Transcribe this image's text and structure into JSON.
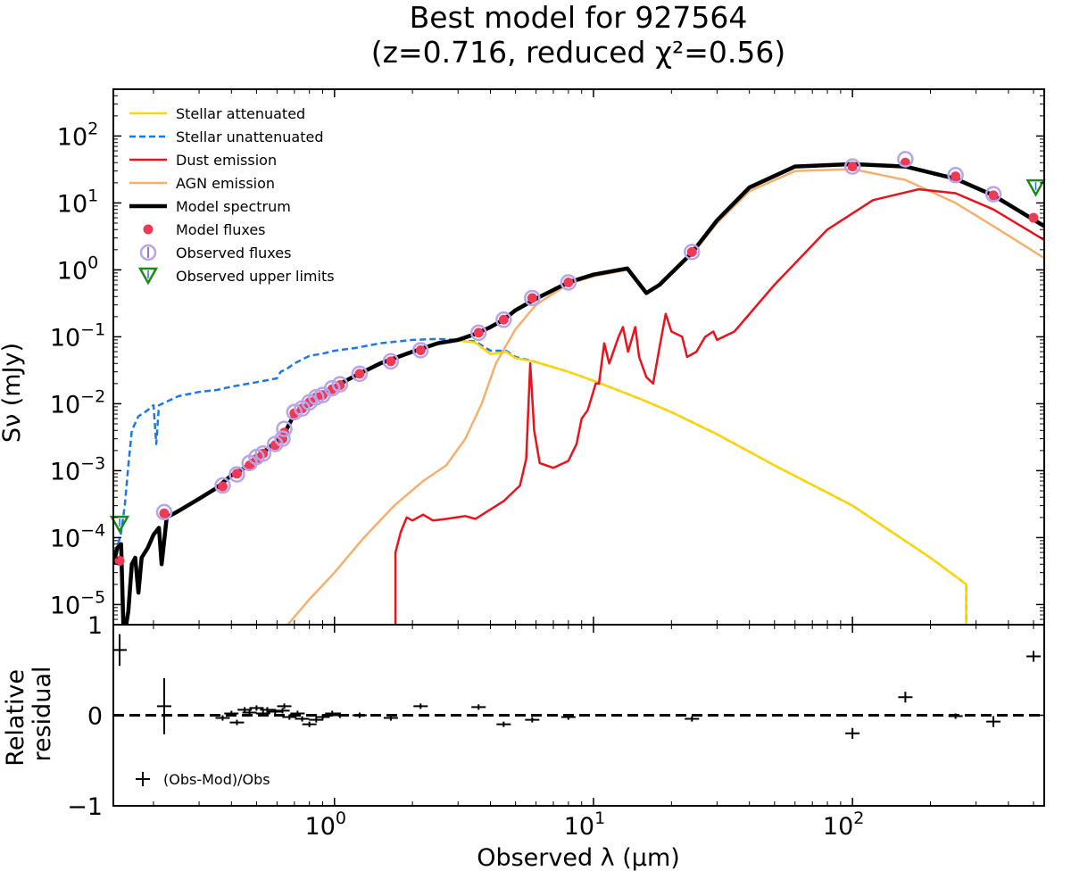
{
  "title_line1": "Best model for 927564",
  "title_line2": "(z=0.716, reduced χ²=0.56)",
  "chart_data": {
    "type": "line",
    "title": "Best model for 927564 (z=0.716, reduced χ²=0.56)",
    "xlabel": "Observed λ (μm)",
    "ylabel": "Sν (mJy)",
    "xscale": "log",
    "yscale": "log",
    "xlim": [
      0.14,
      550
    ],
    "ylim": [
      5e-06,
      500
    ],
    "x_ticks": [
      {
        "value": 1,
        "base": "10",
        "exp": "0"
      },
      {
        "value": 10,
        "base": "10",
        "exp": "1"
      },
      {
        "value": 100,
        "base": "10",
        "exp": "2"
      }
    ],
    "y_ticks": [
      {
        "value": 1e-05,
        "base": "10",
        "exp": "−5"
      },
      {
        "value": 0.0001,
        "base": "10",
        "exp": "−4"
      },
      {
        "value": 0.001,
        "base": "10",
        "exp": "−3"
      },
      {
        "value": 0.01,
        "base": "10",
        "exp": "−2"
      },
      {
        "value": 0.1,
        "base": "10",
        "exp": "−1"
      },
      {
        "value": 1,
        "base": "10",
        "exp": "0"
      },
      {
        "value": 10,
        "base": "10",
        "exp": "1"
      },
      {
        "value": 100,
        "base": "10",
        "exp": "2"
      }
    ],
    "legend": {
      "position": "upper-left",
      "entries": [
        {
          "label": "Stellar attenuated",
          "color": "#FFD700",
          "style": "solid"
        },
        {
          "label": "Stellar unattenuated",
          "color": "#1f77e6",
          "style": "dashed"
        },
        {
          "label": "Dust emission",
          "color": "#e8131c",
          "style": "solid"
        },
        {
          "label": "AGN emission",
          "color": "#f5b070",
          "style": "solid"
        },
        {
          "label": "Model spectrum",
          "color": "#000000",
          "style": "thick"
        },
        {
          "label": "Model fluxes",
          "color": "#ee3a55",
          "style": "dot"
        },
        {
          "label": "Observed fluxes",
          "color": "#b9a3ea",
          "style": "circle"
        },
        {
          "label": "Observed upper limits",
          "color": "#1a8a1a",
          "style": "triangle"
        }
      ]
    },
    "series": [
      {
        "name": "Stellar unattenuated",
        "color": "#1f77e6",
        "points": [
          [
            0.14,
            6e-05
          ],
          [
            0.145,
            7e-05
          ],
          [
            0.15,
            0.00012
          ],
          [
            0.155,
            0.0003
          ],
          [
            0.16,
            0.0012
          ],
          [
            0.165,
            0.004
          ],
          [
            0.175,
            0.0065
          ],
          [
            0.19,
            0.008
          ],
          [
            0.2,
            0.0095
          ],
          [
            0.205,
            0.0025
          ],
          [
            0.21,
            0.0095
          ],
          [
            0.25,
            0.013
          ],
          [
            0.3,
            0.015
          ],
          [
            0.35,
            0.016
          ],
          [
            0.4,
            0.018
          ],
          [
            0.5,
            0.021
          ],
          [
            0.6,
            0.024
          ],
          [
            0.62,
            0.03
          ],
          [
            0.66,
            0.034
          ],
          [
            0.7,
            0.04
          ],
          [
            0.8,
            0.052
          ],
          [
            0.9,
            0.056
          ],
          [
            1.0,
            0.062
          ],
          [
            1.2,
            0.068
          ],
          [
            1.5,
            0.08
          ],
          [
            2.0,
            0.09
          ],
          [
            2.5,
            0.093
          ],
          [
            3.0,
            0.09
          ],
          [
            3.5,
            0.085
          ],
          [
            4.0,
            0.062
          ],
          [
            4.6,
            0.062
          ],
          [
            5.0,
            0.05
          ],
          [
            6.0,
            0.042
          ],
          [
            8.0,
            0.03
          ],
          [
            10.0,
            0.022
          ],
          [
            15.0,
            0.012
          ],
          [
            20.0,
            0.0075
          ],
          [
            30.0,
            0.0035
          ],
          [
            50.0,
            0.0012
          ],
          [
            100.0,
            0.0003
          ],
          [
            200.0,
            5e-05
          ],
          [
            275.0,
            2e-05
          ],
          [
            275.0,
            5e-06
          ]
        ]
      },
      {
        "name": "Stellar attenuated",
        "color": "#FFD700",
        "points": [
          [
            3.0,
            0.088
          ],
          [
            3.5,
            0.082
          ],
          [
            4.0,
            0.055
          ],
          [
            4.6,
            0.06
          ],
          [
            5.0,
            0.048
          ],
          [
            6.0,
            0.042
          ],
          [
            8.0,
            0.03
          ],
          [
            10.0,
            0.022
          ],
          [
            15.0,
            0.012
          ],
          [
            20.0,
            0.0075
          ],
          [
            30.0,
            0.0035
          ],
          [
            50.0,
            0.0012
          ],
          [
            100.0,
            0.0003
          ],
          [
            200.0,
            5e-05
          ],
          [
            275.0,
            2e-05
          ],
          [
            275.0,
            5e-06
          ]
        ]
      },
      {
        "name": "AGN emission",
        "color": "#f5b070",
        "points": [
          [
            0.66,
            5e-06
          ],
          [
            0.8,
            1.2e-05
          ],
          [
            1.0,
            3e-05
          ],
          [
            1.3,
            0.0001
          ],
          [
            1.7,
            0.0003
          ],
          [
            2.2,
            0.0007
          ],
          [
            2.7,
            0.0012
          ],
          [
            3.2,
            0.003
          ],
          [
            3.7,
            0.01
          ],
          [
            4.2,
            0.04
          ],
          [
            5.0,
            0.13
          ],
          [
            6.0,
            0.3
          ],
          [
            8.0,
            0.62
          ],
          [
            10.0,
            0.8
          ],
          [
            13.5,
            1.0
          ],
          [
            16.0,
            0.45
          ],
          [
            18.0,
            0.6
          ],
          [
            24.0,
            1.7
          ],
          [
            30.0,
            5.0
          ],
          [
            40.0,
            15.0
          ],
          [
            60.0,
            30.0
          ],
          [
            100.0,
            32.0
          ],
          [
            160.0,
            22.0
          ],
          [
            250.0,
            10.0
          ],
          [
            350.0,
            4.5
          ],
          [
            550.0,
            1.5
          ]
        ]
      },
      {
        "name": "Dust emission",
        "color": "#e8131c",
        "points": [
          [
            1.72,
            5e-06
          ],
          [
            1.72,
            6e-05
          ],
          [
            1.8,
            0.00012
          ],
          [
            1.9,
            0.0002
          ],
          [
            2.0,
            0.00018
          ],
          [
            2.2,
            0.00022
          ],
          [
            2.4,
            0.00018
          ],
          [
            2.7,
            0.00019
          ],
          [
            3.2,
            0.00021
          ],
          [
            3.5,
            0.00019
          ],
          [
            4.5,
            0.00035
          ],
          [
            5.2,
            0.0006
          ],
          [
            5.5,
            0.0015
          ],
          [
            5.7,
            0.04
          ],
          [
            5.9,
            0.004
          ],
          [
            6.2,
            0.0013
          ],
          [
            7.0,
            0.0011
          ],
          [
            8.0,
            0.0014
          ],
          [
            8.6,
            0.0025
          ],
          [
            9.0,
            0.006
          ],
          [
            9.5,
            0.008
          ],
          [
            10.2,
            0.02
          ],
          [
            10.5,
            0.02
          ],
          [
            11.0,
            0.08
          ],
          [
            11.5,
            0.04
          ],
          [
            12.5,
            0.1
          ],
          [
            13.0,
            0.14
          ],
          [
            13.6,
            0.06
          ],
          [
            14.5,
            0.14
          ],
          [
            15.0,
            0.05
          ],
          [
            16.0,
            0.025
          ],
          [
            17.0,
            0.02
          ],
          [
            18.0,
            0.07
          ],
          [
            19.0,
            0.22
          ],
          [
            20.0,
            0.12
          ],
          [
            22.0,
            0.1
          ],
          [
            23.0,
            0.05
          ],
          [
            25.0,
            0.06
          ],
          [
            27.0,
            0.1
          ],
          [
            29.0,
            0.12
          ],
          [
            30.0,
            0.09
          ],
          [
            35.0,
            0.12
          ],
          [
            50.0,
            0.6
          ],
          [
            80.0,
            4.0
          ],
          [
            120.0,
            11.0
          ],
          [
            180.0,
            16.0
          ],
          [
            250.0,
            14.0
          ],
          [
            350.0,
            8.0
          ],
          [
            550.0,
            2.8
          ]
        ]
      },
      {
        "name": "Model spectrum",
        "color": "#000000",
        "points": [
          [
            0.14,
            4e-05
          ],
          [
            0.145,
            7e-05
          ],
          [
            0.15,
            8e-05
          ],
          [
            0.153,
            5e-06
          ],
          [
            0.157,
            5e-06
          ],
          [
            0.16,
            8e-06
          ],
          [
            0.165,
            4e-05
          ],
          [
            0.17,
            5e-05
          ],
          [
            0.175,
            1.5e-05
          ],
          [
            0.18,
            5e-05
          ],
          [
            0.19,
            7e-05
          ],
          [
            0.2,
            0.00011
          ],
          [
            0.21,
            0.00014
          ],
          [
            0.215,
            4e-05
          ],
          [
            0.225,
            0.0002
          ],
          [
            0.25,
            0.00025
          ],
          [
            0.3,
            0.00038
          ],
          [
            0.35,
            0.00055
          ],
          [
            0.4,
            0.00085
          ],
          [
            0.45,
            0.0011
          ],
          [
            0.5,
            0.0016
          ],
          [
            0.55,
            0.0021
          ],
          [
            0.6,
            0.0028
          ],
          [
            0.65,
            0.004
          ],
          [
            0.7,
            0.007
          ],
          [
            0.8,
            0.01
          ],
          [
            0.9,
            0.014
          ],
          [
            1.0,
            0.018
          ],
          [
            1.2,
            0.026
          ],
          [
            1.5,
            0.04
          ],
          [
            2.0,
            0.06
          ],
          [
            2.5,
            0.08
          ],
          [
            3.0,
            0.09
          ],
          [
            3.5,
            0.11
          ],
          [
            4.0,
            0.14
          ],
          [
            4.5,
            0.18
          ],
          [
            5.0,
            0.25
          ],
          [
            6.0,
            0.37
          ],
          [
            8.0,
            0.65
          ],
          [
            10.0,
            0.85
          ],
          [
            13.5,
            1.05
          ],
          [
            16.0,
            0.45
          ],
          [
            18.0,
            0.6
          ],
          [
            24.0,
            1.8
          ],
          [
            30.0,
            5.5
          ],
          [
            40.0,
            17.0
          ],
          [
            60.0,
            35.0
          ],
          [
            100.0,
            38.0
          ],
          [
            160.0,
            35.0
          ],
          [
            250.0,
            23.0
          ],
          [
            350.0,
            13.0
          ],
          [
            550.0,
            4.5
          ]
        ]
      }
    ],
    "model_fluxes": [
      [
        0.148,
        4.5e-05
      ],
      [
        0.22,
        0.00023
      ],
      [
        0.37,
        0.00058
      ],
      [
        0.42,
        0.0009
      ],
      [
        0.47,
        0.0012
      ],
      [
        0.5,
        0.0015
      ],
      [
        0.53,
        0.0018
      ],
      [
        0.59,
        0.0024
      ],
      [
        0.63,
        0.003
      ],
      [
        0.64,
        0.0037
      ],
      [
        0.7,
        0.0072
      ],
      [
        0.75,
        0.0085
      ],
      [
        0.8,
        0.0105
      ],
      [
        0.85,
        0.0125
      ],
      [
        0.9,
        0.0135
      ],
      [
        0.98,
        0.0165
      ],
      [
        1.05,
        0.019
      ],
      [
        1.25,
        0.028
      ],
      [
        1.65,
        0.043
      ],
      [
        2.15,
        0.063
      ],
      [
        3.6,
        0.115
      ],
      [
        4.5,
        0.18
      ],
      [
        5.8,
        0.38
      ],
      [
        8.0,
        0.65
      ],
      [
        24.0,
        1.85
      ],
      [
        100.0,
        35.0
      ],
      [
        160.0,
        40.0
      ],
      [
        250.0,
        25.0
      ],
      [
        350.0,
        13.0
      ],
      [
        500.0,
        6.0
      ]
    ],
    "observed_fluxes": [
      [
        0.22,
        0.00024
      ],
      [
        0.37,
        0.0006
      ],
      [
        0.42,
        0.00088
      ],
      [
        0.47,
        0.0013
      ],
      [
        0.5,
        0.0016
      ],
      [
        0.53,
        0.0018
      ],
      [
        0.59,
        0.0025
      ],
      [
        0.63,
        0.003
      ],
      [
        0.64,
        0.0042
      ],
      [
        0.7,
        0.0075
      ],
      [
        0.75,
        0.0085
      ],
      [
        0.8,
        0.0105
      ],
      [
        0.85,
        0.0125
      ],
      [
        0.9,
        0.0135
      ],
      [
        0.98,
        0.017
      ],
      [
        1.05,
        0.0195
      ],
      [
        1.25,
        0.028
      ],
      [
        1.65,
        0.043
      ],
      [
        2.15,
        0.063
      ],
      [
        3.6,
        0.115
      ],
      [
        4.5,
        0.18
      ],
      [
        5.8,
        0.38
      ],
      [
        8.0,
        0.65
      ],
      [
        24.0,
        1.85
      ],
      [
        100.0,
        35.0
      ],
      [
        160.0,
        45.0
      ],
      [
        250.0,
        26.0
      ],
      [
        350.0,
        13.5
      ]
    ],
    "upper_limits": [
      [
        0.148,
        0.00016
      ],
      [
        510.0,
        17.0
      ]
    ],
    "residual_panel": {
      "ylabel": "Relative residual",
      "ylim": [
        -1,
        1
      ],
      "y_ticks": [
        "−1",
        "0",
        "1"
      ],
      "legend_label": "(Obs-Mod)/Obs",
      "zero_line": true,
      "points": [
        [
          0.148,
          0.72,
          0.35
        ],
        [
          0.22,
          0.1,
          0.62
        ],
        [
          0.37,
          -0.03,
          0.06
        ],
        [
          0.4,
          0.02,
          0.06
        ],
        [
          0.42,
          -0.08,
          0.06
        ],
        [
          0.45,
          0.06,
          0.06
        ],
        [
          0.47,
          0.03,
          0.06
        ],
        [
          0.5,
          0.08,
          0.06
        ],
        [
          0.53,
          0.02,
          0.06
        ],
        [
          0.55,
          0.06,
          0.06
        ],
        [
          0.59,
          0.04,
          0.06
        ],
        [
          0.63,
          0.05,
          0.06
        ],
        [
          0.64,
          0.1,
          0.06
        ],
        [
          0.67,
          -0.02,
          0.06
        ],
        [
          0.72,
          0.02,
          0.06
        ],
        [
          0.75,
          -0.04,
          0.06
        ],
        [
          0.8,
          -0.1,
          0.06
        ],
        [
          0.85,
          -0.05,
          0.06
        ],
        [
          0.9,
          -0.02,
          0.06
        ],
        [
          0.98,
          0.02,
          0.06
        ],
        [
          1.05,
          0.0,
          0.06
        ],
        [
          1.25,
          0.0,
          0.06
        ],
        [
          1.65,
          -0.03,
          0.06
        ],
        [
          2.15,
          0.1,
          0.06
        ],
        [
          3.6,
          0.09,
          0.06
        ],
        [
          4.5,
          -0.1,
          0.06
        ],
        [
          5.8,
          -0.05,
          0.06
        ],
        [
          8.0,
          -0.02,
          0.06
        ],
        [
          24.0,
          -0.04,
          0.06
        ],
        [
          100.0,
          -0.2,
          0.12
        ],
        [
          160.0,
          0.2,
          0.12
        ],
        [
          250.0,
          -0.01,
          0.06
        ],
        [
          350.0,
          -0.07,
          0.12
        ],
        [
          500.0,
          0.65,
          0.12
        ]
      ]
    }
  }
}
